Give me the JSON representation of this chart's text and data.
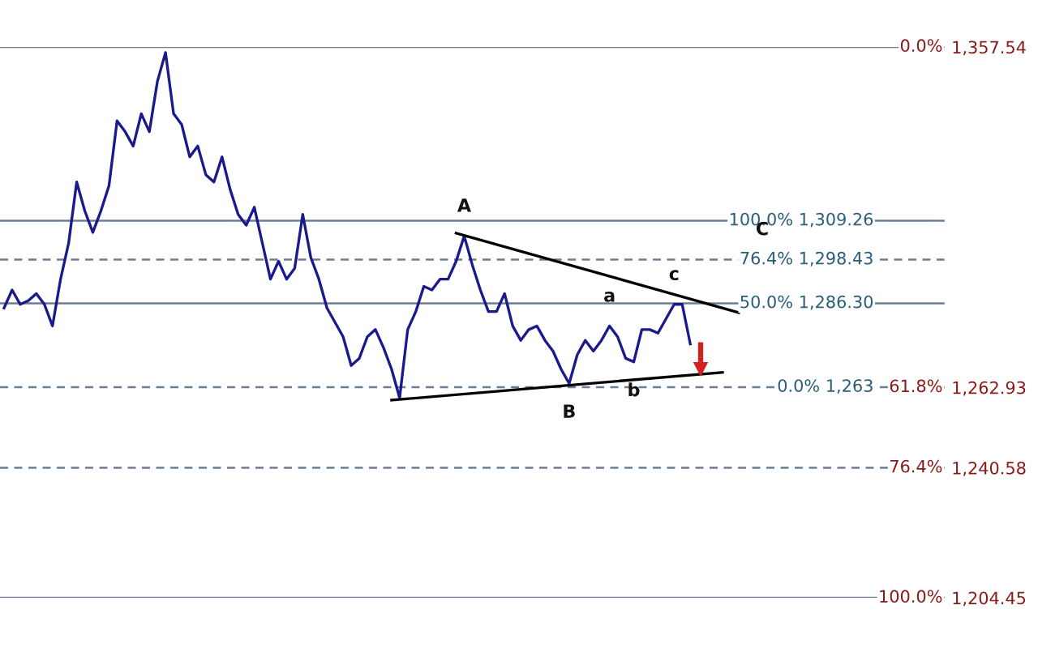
{
  "chart_data": {
    "type": "line",
    "ylim": [
      1204.45,
      1357.54
    ],
    "categories": [
      null,
      null,
      null,
      null,
      null,
      null,
      null,
      null,
      null,
      null,
      null,
      null,
      null,
      null,
      null,
      null,
      null,
      null,
      null,
      null,
      null,
      null,
      null,
      null,
      null,
      null,
      null,
      null,
      null,
      null,
      null,
      null,
      null,
      null,
      null,
      null,
      null,
      null,
      null,
      null,
      null,
      null,
      null,
      null,
      null,
      null,
      null,
      null,
      null,
      null,
      null,
      null,
      null,
      null,
      null,
      null,
      null,
      null,
      null,
      null,
      null,
      null,
      null,
      null,
      null,
      null,
      null,
      null,
      null,
      null,
      null,
      null,
      null,
      null,
      null,
      null,
      null,
      null,
      null,
      null,
      null,
      null,
      null,
      null,
      null,
      null,
      null,
      null,
      null,
      null,
      null,
      null,
      null,
      null,
      null,
      null,
      null,
      null,
      null,
      null,
      null,
      null,
      null,
      null,
      null,
      null,
      null,
      null,
      null,
      null,
      null,
      null,
      null,
      null,
      null,
      null,
      null
    ],
    "yticks": [
      {
        "value": 1357.54,
        "label": "1,357.54"
      },
      {
        "value": 1262.93,
        "label": "1,262.93"
      },
      {
        "value": 1240.58,
        "label": "1,240.58"
      },
      {
        "value": 1204.45,
        "label": "1,204.45"
      }
    ],
    "series": [
      {
        "color": "#1a1a8c",
        "values": [
          1285,
          1290,
          1286,
          1287,
          1289,
          1286,
          1280,
          1293,
          1303,
          1320,
          1312,
          1306,
          1312,
          1319,
          1337,
          1334,
          1330,
          1339,
          1334,
          1348,
          1356,
          1339,
          1336,
          1327,
          1330,
          1322,
          1320,
          1327,
          1318,
          1311,
          1308,
          1313,
          1303,
          1293,
          1298,
          1293,
          1296,
          1311,
          1299,
          1293,
          1285,
          1281,
          1277,
          1269,
          1271,
          1277,
          1279,
          1274,
          1268,
          1260,
          1279,
          1284,
          1291,
          1290,
          1293,
          1293,
          1298,
          1305,
          1297,
          1290,
          1284,
          1284,
          1289,
          1280,
          1276,
          1279,
          1280,
          1276,
          1273,
          1268,
          1264,
          1272,
          1276,
          1273,
          1276,
          1280,
          1277,
          1271,
          1270,
          1279,
          1279,
          1278,
          1282,
          1286,
          1286,
          1275,
          null,
          null,
          null,
          null,
          null,
          null,
          null,
          null,
          null,
          null,
          null,
          null,
          null,
          null,
          null,
          null,
          null,
          null,
          null,
          null,
          null,
          null,
          null,
          null,
          null,
          null,
          null,
          null,
          null,
          null,
          null
        ],
        "value_labels": [
          null,
          null,
          null,
          null,
          null,
          null,
          null,
          null,
          null,
          null,
          null,
          null,
          null,
          null,
          null,
          null,
          null,
          null,
          null,
          null,
          null,
          null,
          null,
          null,
          null,
          null,
          null,
          null,
          null,
          null,
          null,
          null,
          null,
          null,
          null,
          null,
          null,
          null,
          null,
          null,
          null,
          null,
          null,
          null,
          null,
          null,
          null,
          null,
          null,
          null,
          null,
          null,
          null,
          null,
          null,
          null,
          null,
          "A",
          null,
          null,
          null,
          null,
          null,
          null,
          null,
          null,
          null,
          null,
          null,
          null,
          "B",
          null,
          null,
          null,
          null,
          "a",
          null,
          null,
          "b",
          null,
          null,
          null,
          null,
          "c",
          null,
          null,
          null,
          null,
          null,
          null,
          null,
          null,
          null,
          null,
          null,
          null,
          null,
          null,
          null,
          null,
          null,
          null,
          null,
          null,
          null,
          null,
          null,
          null,
          null,
          null,
          null,
          null,
          null,
          null,
          null,
          null,
          null
        ]
      },
      {
        "type": "line",
        "color": "#000000",
        "values": [
          null,
          null,
          null,
          null,
          null,
          null,
          null,
          null,
          null,
          null,
          null,
          null,
          null,
          null,
          null,
          null,
          null,
          null,
          null,
          null,
          null,
          null,
          null,
          null,
          null,
          null,
          null,
          null,
          null,
          null,
          null,
          null,
          null,
          null,
          null,
          null,
          null,
          null,
          null,
          null,
          null,
          null,
          null,
          null,
          null,
          null,
          null,
          null,
          null,
          null,
          null,
          null,
          null,
          null,
          null,
          null,
          1305.8,
          null,
          null,
          null,
          null,
          null,
          null,
          null,
          null,
          null,
          null,
          null,
          null,
          null,
          null,
          null,
          null,
          null,
          null,
          null,
          null,
          null,
          null,
          null,
          null,
          null,
          null,
          null,
          null,
          null,
          null,
          null,
          null,
          null,
          null,
          1283.7,
          null,
          null,
          null,
          null,
          null,
          null,
          null,
          null,
          null,
          null,
          null,
          null,
          null,
          null,
          null,
          null,
          null,
          null,
          null,
          null,
          null,
          null,
          null,
          null,
          null
        ]
      },
      {
        "type": "line",
        "color": "#000000",
        "values": [
          null,
          null,
          null,
          null,
          null,
          null,
          null,
          null,
          null,
          null,
          null,
          null,
          null,
          null,
          null,
          null,
          null,
          null,
          null,
          null,
          null,
          null,
          null,
          null,
          null,
          null,
          null,
          null,
          null,
          null,
          null,
          null,
          null,
          null,
          null,
          null,
          null,
          null,
          null,
          null,
          null,
          null,
          null,
          null,
          null,
          null,
          null,
          null,
          1259.4,
          null,
          null,
          null,
          null,
          null,
          null,
          null,
          null,
          null,
          null,
          null,
          null,
          null,
          null,
          null,
          null,
          null,
          null,
          null,
          null,
          null,
          null,
          null,
          null,
          null,
          null,
          null,
          null,
          null,
          null,
          null,
          null,
          null,
          null,
          null,
          null,
          null,
          null,
          null,
          null,
          1267.1,
          null,
          null,
          null,
          null,
          null,
          null,
          null,
          null,
          null,
          null,
          null,
          null,
          null,
          null,
          null,
          null,
          null,
          null,
          null,
          null,
          null,
          null,
          null,
          null,
          null,
          null,
          null
        ]
      }
    ],
    "ref_lines": [
      {
        "axis": "y",
        "value": 1357.54,
        "line_style": "solid"
      },
      {
        "axis": "y",
        "value": 1309.26,
        "label": "100.0% 1,309.26",
        "line_style": "solid"
      },
      {
        "axis": "y",
        "value": 1298.43,
        "label": "76.4% 1,298.43",
        "line_style": "dashed"
      },
      {
        "axis": "y",
        "value": 1286.3,
        "label": "50.0% 1,286.30",
        "line_style": "solid"
      },
      {
        "axis": "y",
        "value": 1263,
        "label": "0.0% 1,263",
        "line_style": "dashed"
      },
      {
        "axis": "y",
        "value": 1240.58,
        "line_style": "dashed"
      },
      {
        "axis": "y",
        "value": 1204.45,
        "line_style": "solid"
      }
    ],
    "annotations": [
      "0.0%",
      "61.8%",
      "76.4%",
      "100.0%",
      "C"
    ]
  }
}
